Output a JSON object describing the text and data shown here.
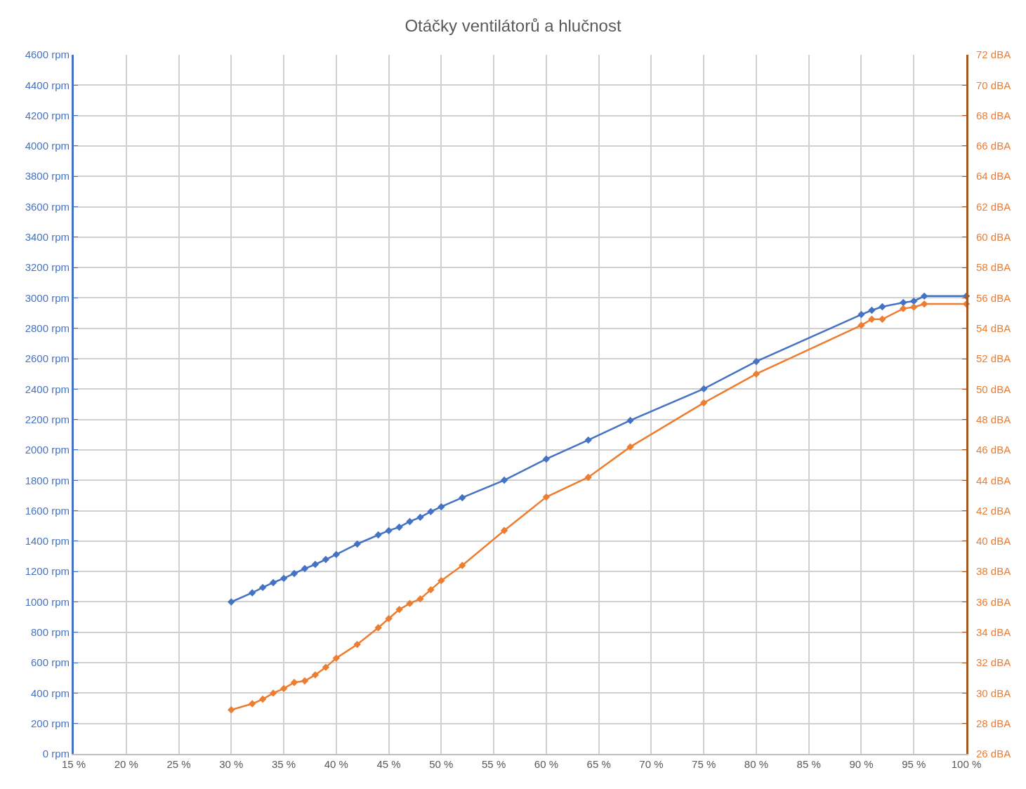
{
  "chart_data": {
    "type": "line",
    "title": "Otáčky ventilátorů a hlučnost",
    "x": [
      30,
      32,
      33,
      34,
      35,
      36,
      37,
      38,
      39,
      40,
      42,
      44,
      45,
      46,
      47,
      48,
      49,
      50,
      52,
      56,
      60,
      64,
      68,
      75,
      80,
      90,
      91,
      92,
      94,
      95,
      96,
      100
    ],
    "series": [
      {
        "color": "#4472c4",
        "values": [
          1000,
          1060,
          1095,
          1127,
          1155,
          1187,
          1219,
          1247,
          1279,
          1312,
          1381,
          1441,
          1469,
          1492,
          1529,
          1557,
          1594,
          1626,
          1686,
          1801,
          1940,
          2065,
          2194,
          2402,
          2582,
          2891,
          2919,
          2942,
          2970,
          2979,
          3012,
          3012
        ]
      },
      {
        "color": "#ed7d31",
        "axis": "y2",
        "values": [
          28.9,
          29.3,
          29.6,
          30.0,
          30.3,
          30.7,
          30.8,
          31.2,
          31.7,
          32.3,
          33.2,
          34.3,
          34.9,
          35.5,
          35.9,
          36.2,
          36.8,
          37.4,
          38.4,
          40.7,
          42.9,
          44.2,
          46.2,
          49.1,
          51.0,
          54.2,
          54.6,
          54.6,
          55.3,
          55.4,
          55.6,
          55.6
        ]
      }
    ],
    "xlim": [
      15,
      100
    ],
    "xticks": [
      {
        "value": 15,
        "label": "15 %"
      },
      {
        "value": 20,
        "label": "20 %"
      },
      {
        "value": 25,
        "label": "25 %"
      },
      {
        "value": 30,
        "label": "30 %"
      },
      {
        "value": 35,
        "label": "35 %"
      },
      {
        "value": 40,
        "label": "40 %"
      },
      {
        "value": 45,
        "label": "45 %"
      },
      {
        "value": 50,
        "label": "50 %"
      },
      {
        "value": 55,
        "label": "55 %"
      },
      {
        "value": 60,
        "label": "60 %"
      },
      {
        "value": 65,
        "label": "65 %"
      },
      {
        "value": 70,
        "label": "70 %"
      },
      {
        "value": 75,
        "label": "75 %"
      },
      {
        "value": 80,
        "label": "80 %"
      },
      {
        "value": 85,
        "label": "85 %"
      },
      {
        "value": 90,
        "label": "90 %"
      },
      {
        "value": 95,
        "label": "95 %"
      },
      {
        "value": 100,
        "label": "100 %"
      }
    ],
    "ylim": [
      0,
      4600
    ],
    "yticks": [
      {
        "value": 0,
        "label": "0 rpm"
      },
      {
        "value": 200,
        "label": "200 rpm"
      },
      {
        "value": 400,
        "label": "400 rpm"
      },
      {
        "value": 600,
        "label": "600 rpm"
      },
      {
        "value": 800,
        "label": "800 rpm"
      },
      {
        "value": 1000,
        "label": "1000 rpm"
      },
      {
        "value": 1200,
        "label": "1200 rpm"
      },
      {
        "value": 1400,
        "label": "1400 rpm"
      },
      {
        "value": 1600,
        "label": "1600 rpm"
      },
      {
        "value": 1800,
        "label": "1800 rpm"
      },
      {
        "value": 2000,
        "label": "2000 rpm"
      },
      {
        "value": 2200,
        "label": "2200 rpm"
      },
      {
        "value": 2400,
        "label": "2400 rpm"
      },
      {
        "value": 2600,
        "label": "2600 rpm"
      },
      {
        "value": 2800,
        "label": "2800 rpm"
      },
      {
        "value": 3000,
        "label": "3000 rpm"
      },
      {
        "value": 3200,
        "label": "3200 rpm"
      },
      {
        "value": 3400,
        "label": "3400 rpm"
      },
      {
        "value": 3600,
        "label": "3600 rpm"
      },
      {
        "value": 3800,
        "label": "3800 rpm"
      },
      {
        "value": 4000,
        "label": "4000 rpm"
      },
      {
        "value": 4200,
        "label": "4200 rpm"
      },
      {
        "value": 4400,
        "label": "4400 rpm"
      },
      {
        "value": 4600,
        "label": "4600 rpm"
      }
    ],
    "y2lim": [
      26,
      72
    ],
    "y2ticks": [
      {
        "value": 26,
        "label": "26 dBA"
      },
      {
        "value": 28,
        "label": "28 dBA"
      },
      {
        "value": 30,
        "label": "30 dBA"
      },
      {
        "value": 32,
        "label": "32 dBA"
      },
      {
        "value": 34,
        "label": "34 dBA"
      },
      {
        "value": 36,
        "label": "36 dBA"
      },
      {
        "value": 38,
        "label": "38 dBA"
      },
      {
        "value": 40,
        "label": "40 dBA"
      },
      {
        "value": 42,
        "label": "42 dBA"
      },
      {
        "value": 44,
        "label": "44 dBA"
      },
      {
        "value": 46,
        "label": "46 dBA"
      },
      {
        "value": 48,
        "label": "48 dBA"
      },
      {
        "value": 50,
        "label": "50 dBA"
      },
      {
        "value": 52,
        "label": "52 dBA"
      },
      {
        "value": 54,
        "label": "54 dBA"
      },
      {
        "value": 56,
        "label": "56 dBA"
      },
      {
        "value": 58,
        "label": "58 dBA"
      },
      {
        "value": 60,
        "label": "60 dBA"
      },
      {
        "value": 62,
        "label": "62 dBA"
      },
      {
        "value": 64,
        "label": "64 dBA"
      },
      {
        "value": 66,
        "label": "66 dBA"
      },
      {
        "value": 68,
        "label": "68 dBA"
      },
      {
        "value": 70,
        "label": "70 dBA"
      },
      {
        "value": 72,
        "label": "72 dBA"
      }
    ],
    "grid": true,
    "marker": "diamond",
    "line_style": "solid"
  }
}
